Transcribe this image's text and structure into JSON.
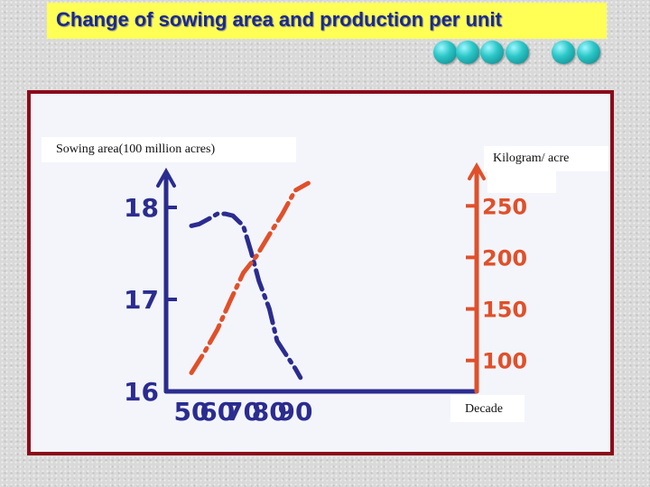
{
  "slide": {
    "title": "Change of sowing area and production per unit",
    "dot_color": "#1fb8c0",
    "title_bg": "#ffff55",
    "frame_color": "#8b0a1a"
  },
  "chart_data": {
    "type": "line",
    "title": "",
    "xlabel": "Decade",
    "categories": [
      "50",
      "60",
      "70",
      "80",
      "90"
    ],
    "y_left": {
      "label": "Sowing area(100 million acres)",
      "ticks": [
        "16",
        "17",
        "18"
      ],
      "ylim": [
        16,
        18.2
      ]
    },
    "y_right": {
      "label": "Kilogram/ acre",
      "ticks": [
        "100",
        "150",
        "200",
        "250"
      ],
      "ylim": [
        70,
        280
      ]
    },
    "series": [
      {
        "axis": "left",
        "color": "#2b2c8f",
        "x": [
          50,
          53,
          57,
          60,
          63,
          66,
          70,
          73,
          76,
          80,
          83,
          86,
          90,
          92
        ],
        "values": [
          17.8,
          17.82,
          17.88,
          17.93,
          17.93,
          17.91,
          17.8,
          17.52,
          17.2,
          16.9,
          16.55,
          16.42,
          16.25,
          16.15
        ]
      },
      {
        "axis": "right",
        "color": "#e0502a",
        "x": [
          50,
          55,
          60,
          65,
          70,
          75,
          80,
          85,
          90,
          95
        ],
        "values": [
          88,
          108,
          130,
          158,
          185,
          201,
          222,
          242,
          265,
          272
        ]
      }
    ]
  }
}
